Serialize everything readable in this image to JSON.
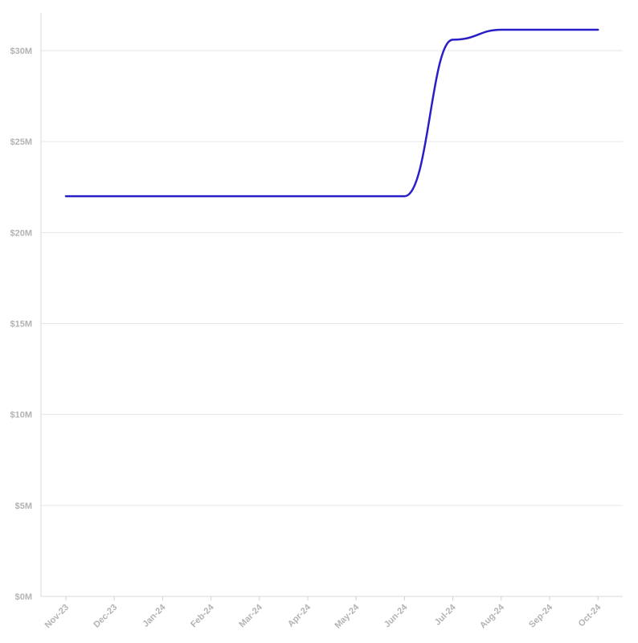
{
  "chart_data": {
    "type": "line",
    "title": "",
    "xlabel": "",
    "ylabel": "",
    "x_ticks": [
      "Nov-23",
      "Dec-23",
      "Jan-24",
      "Feb-24",
      "Mar-24",
      "Apr-24",
      "May-24",
      "Jun-24",
      "Jul-24",
      "Aug-24",
      "Sep-24",
      "Oct-24"
    ],
    "y_ticks": [
      {
        "value": 0,
        "label": "$0M"
      },
      {
        "value": 5,
        "label": "$5M"
      },
      {
        "value": 10,
        "label": "$10M"
      },
      {
        "value": 15,
        "label": "$15M"
      },
      {
        "value": 20,
        "label": "$20M"
      },
      {
        "value": 25,
        "label": "$25M"
      },
      {
        "value": 30,
        "label": "$30M"
      }
    ],
    "ylim": [
      0,
      32
    ],
    "y_unit": "$M",
    "grid": true,
    "legend": "none",
    "series": [
      {
        "color": "#2a1fc7",
        "values": [
          22.0,
          22.0,
          22.0,
          22.0,
          22.0,
          22.0,
          22.0,
          22.0,
          30.6,
          31.15,
          31.15,
          31.15
        ]
      }
    ]
  }
}
